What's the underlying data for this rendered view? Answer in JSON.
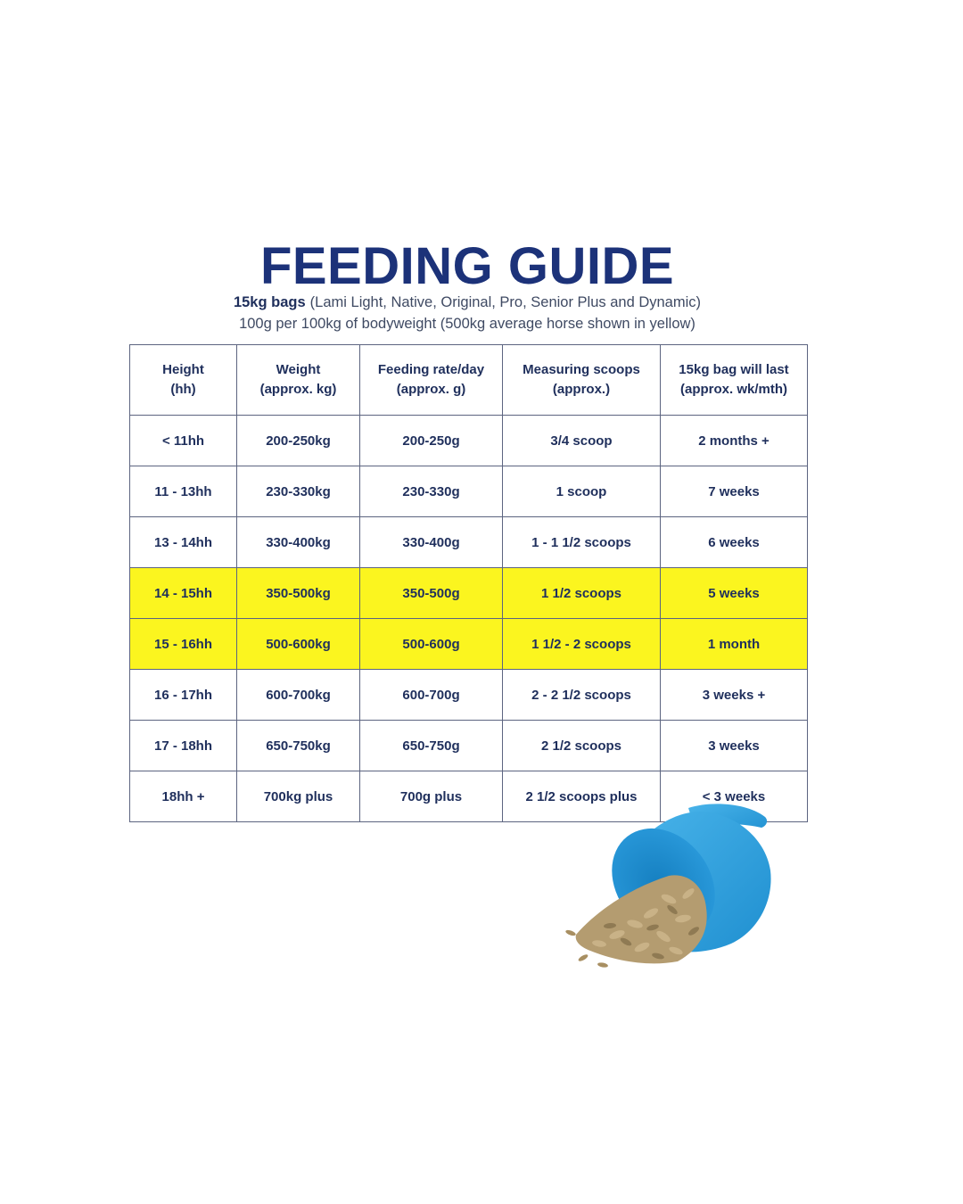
{
  "header": {
    "title": "FEEDING GUIDE",
    "subtitle_lead": "15kg bags",
    "subtitle_rest": "(Lami Light, Native, Original, Pro, Senior Plus and Dynamic)",
    "subtitle2": "100g per 100kg of bodyweight (500kg average horse shown in yellow)"
  },
  "colors": {
    "title": "#1c3279",
    "text": "#1f2f5c",
    "highlight": "#fbf51f",
    "scoop": "#2f9fdc",
    "pellets": "#b79f73"
  },
  "table": {
    "headers": [
      [
        "Height",
        "(hh)"
      ],
      [
        "Weight",
        "(approx. kg)"
      ],
      [
        "Feeding rate/day",
        "(approx. g)"
      ],
      [
        "Measuring scoops",
        "(approx.)"
      ],
      [
        "15kg bag will last",
        "(approx. wk/mth)"
      ]
    ],
    "rows": [
      {
        "cells": [
          "< 11hh",
          "200-250kg",
          "200-250g",
          "3/4 scoop",
          "2 months +"
        ],
        "highlight": false
      },
      {
        "cells": [
          "11 - 13hh",
          "230-330kg",
          "230-330g",
          "1 scoop",
          "7 weeks"
        ],
        "highlight": false
      },
      {
        "cells": [
          "13 - 14hh",
          "330-400kg",
          "330-400g",
          "1 - 1 1/2 scoops",
          "6 weeks"
        ],
        "highlight": false
      },
      {
        "cells": [
          "14 - 15hh",
          "350-500kg",
          "350-500g",
          "1 1/2 scoops",
          "5 weeks"
        ],
        "highlight": true
      },
      {
        "cells": [
          "15 - 16hh",
          "500-600kg",
          "500-600g",
          "1 1/2 - 2 scoops",
          "1 month"
        ],
        "highlight": true
      },
      {
        "cells": [
          "16 - 17hh",
          "600-700kg",
          "600-700g",
          "2 - 2 1/2 scoops",
          "3 weeks +"
        ],
        "highlight": false
      },
      {
        "cells": [
          "17 - 18hh",
          "650-750kg",
          "650-750g",
          "2 1/2 scoops",
          "3 weeks"
        ],
        "highlight": false
      },
      {
        "cells": [
          "18hh +",
          "700kg plus",
          "700g plus",
          "2 1/2 scoops plus",
          "< 3 weeks"
        ],
        "highlight": false
      }
    ]
  },
  "image": {
    "icon": "feed-scoop-with-pellets-icon"
  }
}
